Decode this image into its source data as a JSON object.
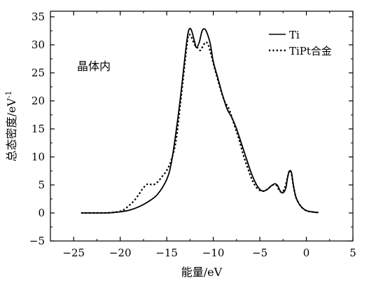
{
  "chart_data": {
    "type": "line",
    "title": "",
    "xlabel": "能量/eV",
    "ylabel": "总态密度/eV",
    "ylabel_superscript": "-1",
    "xlim": [
      -27.5,
      5
    ],
    "ylim": [
      -5,
      36
    ],
    "xticks": [
      -25,
      -20,
      -15,
      -10,
      -5,
      0,
      5
    ],
    "yticks": [
      -5,
      0,
      5,
      10,
      15,
      20,
      25,
      30,
      35
    ],
    "xtick_labels": [
      "−25",
      "−20",
      "−15",
      "−10",
      "−5",
      "0",
      "5"
    ],
    "ytick_labels": [
      "−5",
      "0",
      "5",
      "10",
      "15",
      "20",
      "25",
      "30",
      "35"
    ],
    "annotation": "晶体内",
    "legend_position": "top-right",
    "grid": false,
    "series": [
      {
        "name": "Ti",
        "style": "solid",
        "color": "#000000",
        "x": [
          -24.2,
          -22,
          -21,
          -20,
          -19,
          -18,
          -17,
          -16,
          -15,
          -14.5,
          -14,
          -13.5,
          -13,
          -12.7,
          -12.4,
          -12.0,
          -11.8,
          -11.5,
          -11.2,
          -10.9,
          -10.6,
          -10.3,
          -10.0,
          -9.5,
          -9.0,
          -8.5,
          -8.0,
          -7.5,
          -7.0,
          -6.5,
          -6.0,
          -5.5,
          -5.0,
          -4.6,
          -4.2,
          -3.8,
          -3.4,
          -3.1,
          -2.8,
          -2.5,
          -2.2,
          -2.0,
          -1.8,
          -1.6,
          -1.4,
          -1.2,
          -1.0,
          -0.6,
          -0.2,
          0.2,
          0.6,
          1.0,
          1.3
        ],
        "y": [
          0,
          0,
          0.05,
          0.2,
          0.5,
          1.1,
          2.0,
          3.3,
          6.0,
          9.0,
          14.5,
          21.0,
          28.5,
          32.2,
          32.8,
          30.5,
          29.5,
          30.5,
          32.5,
          32.8,
          31.8,
          30.0,
          27.0,
          24.0,
          21.0,
          18.5,
          17.0,
          15.0,
          12.5,
          10.0,
          7.5,
          5.5,
          4.2,
          3.9,
          4.2,
          4.8,
          5.2,
          4.9,
          3.9,
          3.6,
          4.5,
          6.5,
          7.5,
          7.2,
          5.0,
          3.3,
          2.3,
          1.2,
          0.6,
          0.3,
          0.2,
          0.1,
          0.1
        ]
      },
      {
        "name": "TiPt合金",
        "style": "dotted",
        "color": "#000000",
        "x": [
          -24.2,
          -22,
          -21,
          -20,
          -19.5,
          -19,
          -18.5,
          -18,
          -17.5,
          -17.0,
          -16.5,
          -16,
          -15.5,
          -15,
          -14.5,
          -14,
          -13.5,
          -13,
          -12.7,
          -12.4,
          -12.0,
          -11.7,
          -11.4,
          -11.1,
          -10.8,
          -10.5,
          -10.2,
          -9.8,
          -9.3,
          -8.8,
          -8.3,
          -7.8,
          -7.3,
          -6.8,
          -6.3,
          -5.8,
          -5.3,
          -4.8,
          -4.4,
          -4.0,
          -3.6,
          -3.2,
          -2.9,
          -2.6,
          -2.3,
          -2.0,
          -1.8,
          -1.6,
          -1.4,
          -1.2,
          -1.0,
          -0.6,
          -0.2,
          0.2,
          0.6,
          1.0,
          1.3
        ],
        "y": [
          0,
          0,
          0.05,
          0.3,
          0.7,
          1.4,
          2.2,
          3.3,
          4.5,
          5.2,
          5.0,
          5.5,
          6.5,
          7.6,
          9.5,
          13.0,
          20.0,
          27.5,
          31.5,
          31.5,
          30.0,
          29.5,
          29.0,
          29.8,
          30.5,
          29.8,
          28.0,
          25.5,
          22.5,
          20.0,
          18.5,
          16.0,
          13.5,
          10.5,
          8.0,
          5.8,
          4.4,
          3.9,
          4.0,
          4.5,
          5.0,
          4.9,
          4.0,
          3.7,
          4.6,
          6.5,
          7.6,
          7.0,
          4.9,
          3.3,
          2.3,
          1.2,
          0.6,
          0.3,
          0.2,
          0.1,
          0.1
        ]
      }
    ]
  }
}
